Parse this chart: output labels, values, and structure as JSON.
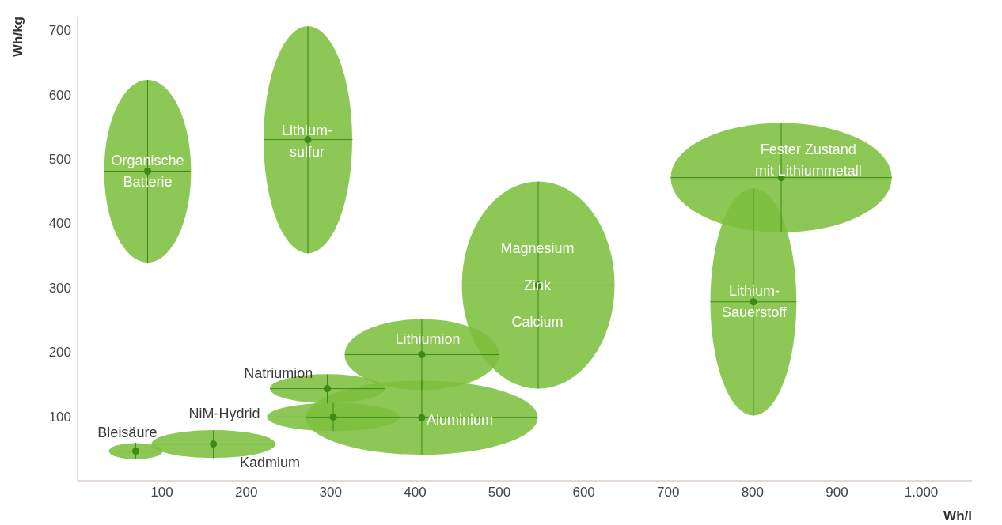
{
  "chart_data": {
    "type": "scatter",
    "xlabel": "Wh/l",
    "ylabel": "Wh/kg",
    "color": "#3d8a14",
    "marker": "circle",
    "xlim": [
      0,
      1060
    ],
    "xticks": [
      100,
      200,
      300,
      400,
      500,
      600,
      700,
      800,
      900,
      {
        "value": 1000,
        "label": "1.000"
      }
    ],
    "ylim": [
      0,
      720
    ],
    "yticks": [
      100,
      200,
      300,
      400,
      500,
      600,
      700
    ],
    "x": [
      83,
      273,
      546,
      834,
      801,
      408,
      408,
      296,
      303,
      69,
      161
    ],
    "values": [
      481,
      530,
      304,
      471,
      278,
      196,
      98,
      143,
      99,
      46,
      57
    ],
    "xerrors": [
      [
        31,
        134
      ],
      [
        221,
        326
      ],
      [
        456,
        637
      ],
      [
        703,
        965
      ],
      [
        750,
        852
      ],
      [
        317,
        500
      ],
      [
        270,
        545
      ],
      [
        228,
        364
      ],
      [
        225,
        382
      ],
      [
        37,
        101
      ],
      [
        88,
        235
      ]
    ],
    "errors": [
      [
        339,
        623
      ],
      [
        353,
        706
      ],
      [
        143,
        465
      ],
      [
        386,
        556
      ],
      [
        101,
        454
      ],
      [
        141,
        251
      ],
      [
        41,
        156
      ],
      [
        120,
        165
      ],
      [
        77,
        121
      ],
      [
        34,
        59
      ],
      [
        35,
        78
      ]
    ],
    "annotations": [
      "Organische\nBatterie",
      "Lithium-\nsulfur",
      "Magnesium",
      "Zink",
      "Calcium",
      "Fester Zustand\nmit Lithiummetall",
      "Lithium-\nSauerstoff",
      "Lithiumion",
      "Aluminium",
      "Natriumion",
      "NiM-Hydrid",
      "Bleisäure",
      "Kadmium"
    ]
  }
}
